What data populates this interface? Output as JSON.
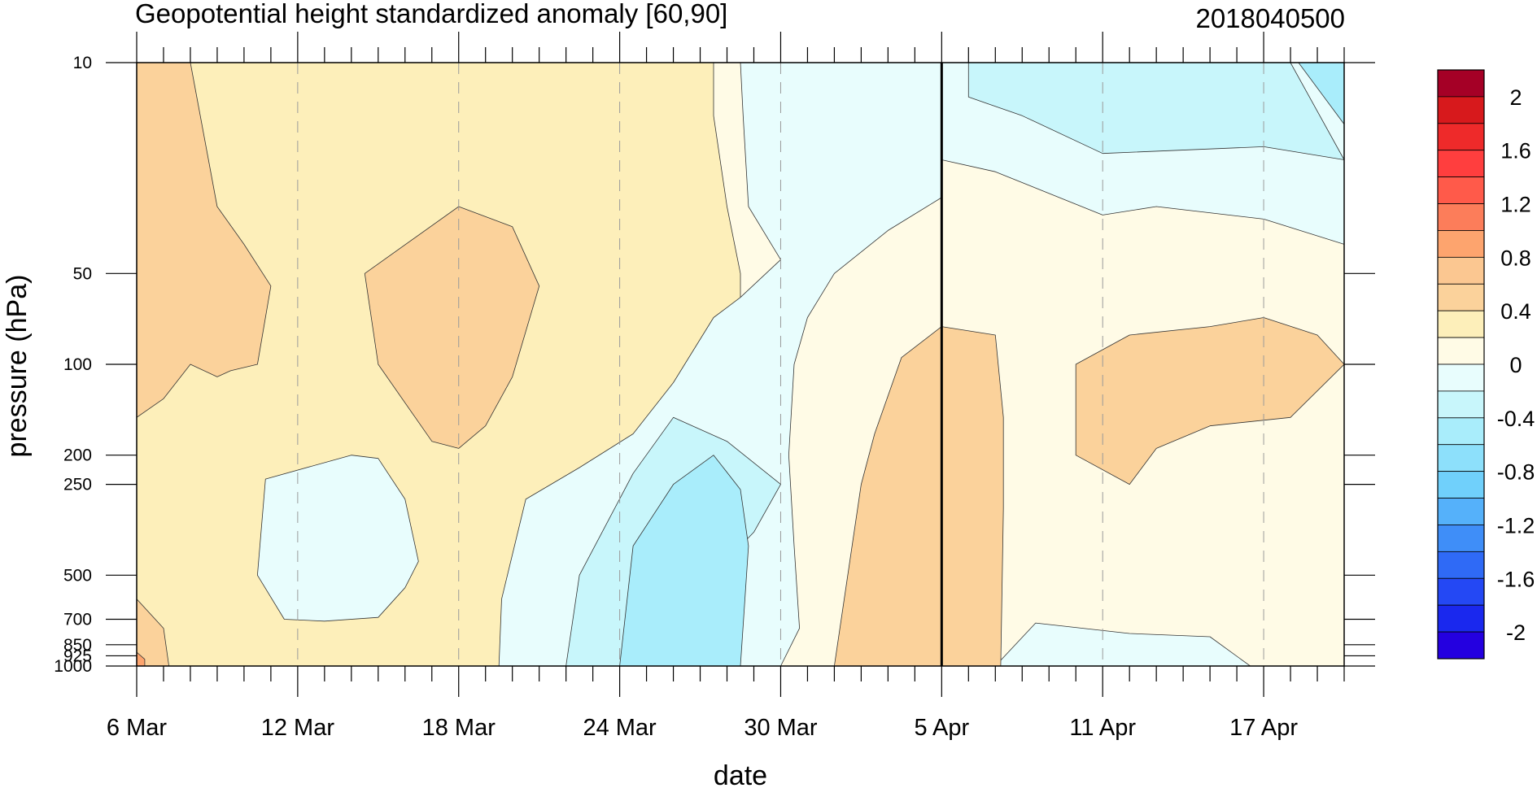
{
  "chart_data": {
    "type": "heatmap",
    "title": "Geopotential height standardized anomaly [60,90]",
    "date_label": "2018040500",
    "xlabel": "date",
    "ylabel": "pressure (hPa)",
    "x_tick_labels": [
      "6 Mar",
      "12 Mar",
      "18 Mar",
      "24 Mar",
      "30 Mar",
      "5 Apr",
      "11 Apr",
      "17 Apr"
    ],
    "x_tick_days": [
      0,
      6,
      12,
      18,
      24,
      30,
      36,
      42
    ],
    "x_range_days": [
      0,
      45
    ],
    "current_day": 30,
    "y_tick_labels": [
      "10",
      "50",
      "100",
      "200",
      "250",
      "500",
      "700",
      "850",
      "925",
      "1000"
    ],
    "y_ticks": [
      10,
      50,
      100,
      200,
      250,
      500,
      700,
      850,
      925,
      1000
    ],
    "y_scale": "log",
    "y_range": [
      1000,
      10
    ],
    "colorbar": {
      "labels": [
        "2",
        "1.6",
        "1.2",
        "0.8",
        "0.4",
        "0",
        "-0.4",
        "-0.8",
        "-1.2",
        "-1.6",
        "-2"
      ],
      "levels": [
        2.2,
        2.0,
        1.8,
        1.6,
        1.4,
        1.2,
        1.0,
        0.8,
        0.6,
        0.4,
        0.2,
        0.0,
        -0.2,
        -0.4,
        -0.6,
        -0.8,
        -1.0,
        -1.2,
        -1.4,
        -1.6,
        -1.8,
        -2.0,
        -2.2
      ],
      "colors": [
        "#a50026",
        "#d7191c",
        "#ee2a2a",
        "#ff3e3e",
        "#ff5a4a",
        "#fc7d5a",
        "#fda46e",
        "#fbc791",
        "#fbd29b",
        "#fdefba",
        "#fffbe6",
        "#e8fdfd",
        "#c8f6fb",
        "#a9edfb",
        "#8de0fb",
        "#70d0fb",
        "#55b1fa",
        "#3f8ef8",
        "#2f6af6",
        "#2448f4",
        "#1a28ee",
        "#2400e0"
      ]
    },
    "regions": [
      {
        "level": 0.4,
        "color": "#fdefba",
        "points": [
          [
            0,
            10
          ],
          [
            45,
            10
          ],
          [
            45,
            1000
          ],
          [
            0,
            1000
          ]
        ]
      },
      {
        "level": 0.0,
        "color": "#fffbe6",
        "points": [
          [
            21.5,
            10
          ],
          [
            45,
            10
          ],
          [
            45,
            1000
          ],
          [
            18.5,
            1000
          ],
          [
            17.5,
            500
          ],
          [
            18,
            250
          ],
          [
            19,
            180
          ],
          [
            21,
            120
          ],
          [
            22.5,
            80
          ],
          [
            22.5,
            50
          ],
          [
            22,
            30
          ],
          [
            21.5,
            15
          ]
        ]
      },
      {
        "level": -0.4,
        "color": "#e8fdfd",
        "points": [
          [
            22.5,
            10
          ],
          [
            30,
            10
          ],
          [
            30,
            28
          ],
          [
            28,
            36
          ],
          [
            26,
            50
          ],
          [
            25,
            70
          ],
          [
            24.5,
            100
          ],
          [
            24.3,
            200
          ],
          [
            24.5,
            400
          ],
          [
            24.7,
            750
          ],
          [
            24,
            1000
          ],
          [
            13.5,
            1000
          ],
          [
            13.6,
            600
          ],
          [
            14.5,
            280
          ],
          [
            16.5,
            220
          ],
          [
            18.5,
            170
          ],
          [
            20,
            115
          ],
          [
            21.5,
            70
          ],
          [
            22.5,
            60
          ],
          [
            24,
            45
          ],
          [
            22.8,
            30
          ],
          [
            22.6,
            15
          ]
        ]
      },
      {
        "level": -0.4,
        "color": "#e8fdfd",
        "points": [
          [
            30,
            10
          ],
          [
            45,
            10
          ],
          [
            45,
            40
          ],
          [
            42,
            33
          ],
          [
            38,
            30
          ],
          [
            36,
            32
          ],
          [
            32,
            23
          ],
          [
            30,
            21
          ]
        ]
      },
      {
        "level": -0.4,
        "color": "#e8fdfd",
        "points": [
          [
            4.8,
            240
          ],
          [
            8,
            200
          ],
          [
            9,
            205
          ],
          [
            10,
            280
          ],
          [
            10.5,
            450
          ],
          [
            10,
            550
          ],
          [
            9,
            690
          ],
          [
            7,
            710
          ],
          [
            5.5,
            700
          ],
          [
            4.5,
            500
          ]
        ]
      },
      {
        "level": -0.4,
        "color": "#e8fdfd",
        "points": [
          [
            32,
            1000
          ],
          [
            33.5,
            720
          ],
          [
            37,
            780
          ],
          [
            40,
            800
          ],
          [
            41.5,
            1000
          ]
        ]
      },
      {
        "level": -0.8,
        "color": "#c8f6fb",
        "points": [
          [
            31,
            10
          ],
          [
            43,
            10
          ],
          [
            45,
            21
          ],
          [
            42,
            19
          ],
          [
            36,
            20
          ],
          [
            33,
            15
          ],
          [
            31,
            13
          ]
        ]
      },
      {
        "level": -0.8,
        "color": "#c8f6fb",
        "points": [
          [
            16,
            1000
          ],
          [
            16.5,
            500
          ],
          [
            18.5,
            230
          ],
          [
            20,
            150
          ],
          [
            22,
            180
          ],
          [
            24,
            250
          ],
          [
            23,
            360
          ],
          [
            21,
            550
          ],
          [
            20,
            1000
          ]
        ]
      },
      {
        "level": -1.2,
        "color": "#a9edfb",
        "points": [
          [
            18,
            1000
          ],
          [
            18.5,
            400
          ],
          [
            20,
            250
          ],
          [
            21.5,
            200
          ],
          [
            22.5,
            260
          ],
          [
            22.8,
            400
          ],
          [
            22.5,
            1000
          ]
        ]
      },
      {
        "level": -1.2,
        "color": "#a9edfb",
        "points": [
          [
            43.3,
            10
          ],
          [
            45,
            10
          ],
          [
            45,
            16
          ]
        ]
      },
      {
        "level": 0.8,
        "color": "#fbd29b",
        "points": [
          [
            0,
            10
          ],
          [
            2,
            10
          ],
          [
            3,
            30
          ],
          [
            4,
            40
          ],
          [
            5,
            55
          ],
          [
            4.5,
            100
          ],
          [
            3.5,
            105
          ],
          [
            3,
            110
          ],
          [
            2,
            100
          ],
          [
            1,
            130
          ],
          [
            0,
            150
          ]
        ]
      },
      {
        "level": 0.8,
        "color": "#fbd29b",
        "points": [
          [
            8.5,
            50
          ],
          [
            12,
            30
          ],
          [
            14,
            35
          ],
          [
            15,
            55
          ],
          [
            14,
            110
          ],
          [
            13,
            160
          ],
          [
            12,
            190
          ],
          [
            11,
            180
          ],
          [
            9,
            100
          ]
        ]
      },
      {
        "level": 0.8,
        "color": "#fbd29b",
        "points": [
          [
            26,
            1000
          ],
          [
            27,
            250
          ],
          [
            27.5,
            170
          ],
          [
            28.5,
            95
          ],
          [
            30,
            75
          ],
          [
            32,
            80
          ],
          [
            32.3,
            150
          ],
          [
            32.3,
            300
          ],
          [
            32.2,
            1000
          ]
        ]
      },
      {
        "level": 0.8,
        "color": "#fbd29b",
        "points": [
          [
            35,
            100
          ],
          [
            37,
            80
          ],
          [
            40,
            75
          ],
          [
            42,
            70
          ],
          [
            44,
            80
          ],
          [
            45,
            100
          ],
          [
            43,
            150
          ],
          [
            40,
            160
          ],
          [
            38,
            190
          ],
          [
            37,
            250
          ],
          [
            35,
            200
          ]
        ]
      },
      {
        "level": 0.8,
        "color": "#fbd29b",
        "points": [
          [
            0,
            600
          ],
          [
            1,
            750
          ],
          [
            1.2,
            1000
          ],
          [
            0,
            1000
          ]
        ]
      },
      {
        "level": 1.2,
        "color": "#fda46e",
        "points": [
          [
            0,
            900
          ],
          [
            0.3,
            950
          ],
          [
            0.3,
            1000
          ],
          [
            0,
            1000
          ]
        ]
      }
    ]
  }
}
